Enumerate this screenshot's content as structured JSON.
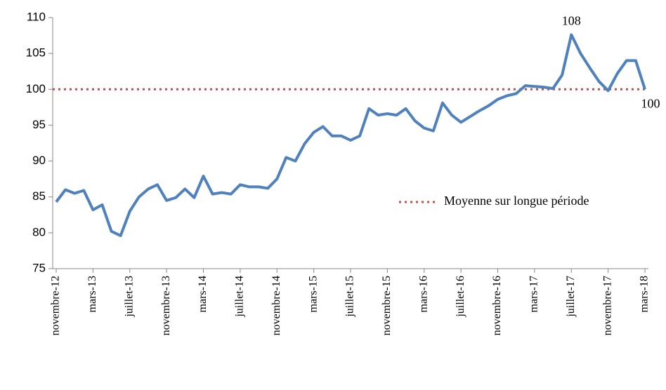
{
  "chart_data": {
    "type": "line",
    "categories": [
      "novembre-12",
      null,
      null,
      null,
      "mars-13",
      null,
      null,
      null,
      "juillet-13",
      null,
      null,
      null,
      "novembre-13",
      null,
      null,
      null,
      "mars-14",
      null,
      null,
      null,
      "juillet-14",
      null,
      null,
      null,
      "novembre-14",
      null,
      null,
      null,
      "mars-15",
      null,
      null,
      null,
      "juillet-15",
      null,
      null,
      null,
      "novembre-15",
      null,
      null,
      null,
      "mars-16",
      null,
      null,
      null,
      "juillet-16",
      null,
      null,
      null,
      "novembre-16",
      null,
      null,
      null,
      "mars-17",
      null,
      null,
      null,
      "juillet-17",
      null,
      null,
      null,
      "novembre-17",
      null,
      null,
      null,
      "mars-18"
    ],
    "series": [
      {
        "color": "#4f81bd",
        "values": [
          84.3,
          86,
          85.5,
          85.9,
          83.2,
          83.9,
          80.2,
          79.6,
          83,
          85,
          86.1,
          86.7,
          84.5,
          84.9,
          86.1,
          84.9,
          87.9,
          85.4,
          85.6,
          85.4,
          86.7,
          86.4,
          86.4,
          86.2,
          87.5,
          90.5,
          90,
          92.4,
          94,
          94.8,
          93.5,
          93.5,
          92.9,
          93.5,
          97.3,
          96.4,
          96.6,
          96.4,
          97.3,
          95.6,
          94.6,
          94.2,
          98.1,
          96.4,
          95.4,
          96.2,
          97,
          97.7,
          98.6,
          99.1,
          99.4,
          100.5,
          100.4,
          100.3,
          100.1,
          102,
          107.6,
          105,
          103,
          101.1,
          99.8,
          102.2,
          104,
          104,
          100
        ],
        "value_labels": [
          null,
          null,
          null,
          null,
          null,
          null,
          null,
          null,
          null,
          null,
          null,
          null,
          null,
          null,
          null,
          null,
          null,
          null,
          null,
          null,
          null,
          null,
          null,
          null,
          null,
          null,
          null,
          null,
          null,
          null,
          null,
          null,
          null,
          null,
          null,
          null,
          null,
          null,
          null,
          null,
          null,
          null,
          null,
          null,
          null,
          null,
          null,
          null,
          null,
          null,
          null,
          null,
          null,
          null,
          null,
          null,
          "108",
          null,
          null,
          null,
          null,
          null,
          null,
          null,
          "100"
        ]
      }
    ],
    "reference_lines": [
      {
        "name": "Moyenne sur longue période",
        "value": 100,
        "color": "#c0504d"
      }
    ],
    "ylim": [
      75,
      110
    ],
    "yticks": [
      75,
      80,
      85,
      90,
      95,
      100,
      105,
      110
    ],
    "grid": false,
    "legend": "right"
  }
}
